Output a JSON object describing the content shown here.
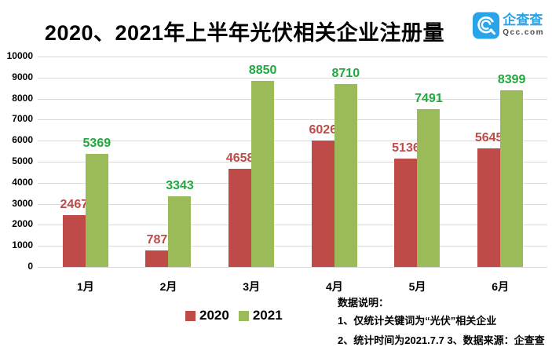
{
  "title": "2020、2021年上半年光伏相关企业注册量",
  "logo": {
    "name": "企查查",
    "domain": "Qcc.com",
    "brand_color": "#2aa4e9"
  },
  "chart_data": {
    "type": "bar",
    "title": "2020、2021年上半年光伏相关企业注册量",
    "categories": [
      "1月",
      "2月",
      "3月",
      "4月",
      "5月",
      "6月"
    ],
    "series": [
      {
        "name": "2020",
        "color": "#be4b48",
        "label_color": "#be4b48",
        "values": [
          2467,
          787,
          4658,
          6026,
          5136,
          5645
        ]
      },
      {
        "name": "2021",
        "color": "#9bbb59",
        "label_color": "#21a93f",
        "values": [
          5369,
          3343,
          8850,
          8710,
          7491,
          8399
        ]
      }
    ],
    "xlabel": "",
    "ylabel": "",
    "ylim": [
      0,
      10000
    ],
    "yticks": [
      0,
      1000,
      2000,
      3000,
      4000,
      5000,
      6000,
      7000,
      8000,
      9000,
      10000
    ],
    "grid": "horizontal",
    "gridline_color": "#d9d9d9",
    "legend_position": "bottom"
  },
  "legend": {
    "items": [
      {
        "label": "2020",
        "color": "#be4b48"
      },
      {
        "label": "2021",
        "color": "#9bbb59"
      }
    ]
  },
  "footnote": {
    "heading": "数据说明：",
    "line1": "1、仅统计关键词为“光伏”相关企业",
    "line2": "2、统计时间为2021.7.7 3、数据来源：企查查"
  }
}
